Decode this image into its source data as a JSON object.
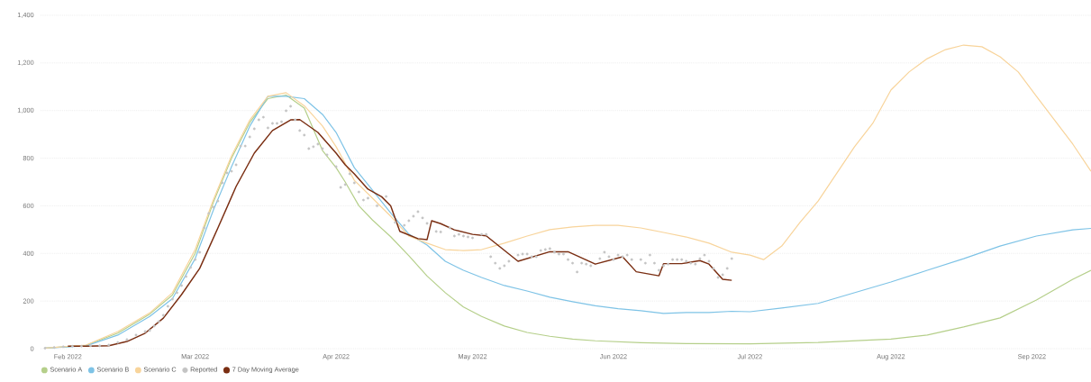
{
  "chart_data": {
    "type": "line",
    "grid": "y",
    "legend": "bottom left",
    "xlim": [
      "2022-01-26",
      "2022-09-14"
    ],
    "ylim": [
      0,
      1400
    ],
    "xticks": [
      {
        "value": "2022-02-01",
        "label": "Feb 2022"
      },
      {
        "value": "2022-03-01",
        "label": "Mar 2022"
      },
      {
        "value": "2022-04-01",
        "label": "Apr 2022"
      },
      {
        "value": "2022-05-01",
        "label": "May 2022"
      },
      {
        "value": "2022-06-01",
        "label": "Jun 2022"
      },
      {
        "value": "2022-07-01",
        "label": "Jul 2022"
      },
      {
        "value": "2022-08-01",
        "label": "Aug 2022"
      },
      {
        "value": "2022-09-01",
        "label": "Sep 2022"
      }
    ],
    "yticks": [
      0,
      200,
      400,
      600,
      800,
      {
        "value": 1000,
        "label": "1,000"
      },
      {
        "value": 1200,
        "label": "1,200"
      },
      {
        "value": 1400,
        "label": "1,400"
      }
    ],
    "series": [
      {
        "name": "Scenario A",
        "color": "#b5cf8a",
        "marker": "none",
        "x": [
          "2022-01-27",
          "2022-02-05",
          "2022-02-12",
          "2022-02-19",
          "2022-02-24",
          "2022-03-01",
          "2022-03-05",
          "2022-03-09",
          "2022-03-13",
          "2022-03-17",
          "2022-03-21",
          "2022-03-25",
          "2022-03-29",
          "2022-04-01",
          "2022-04-03",
          "2022-04-06",
          "2022-04-09",
          "2022-04-13",
          "2022-04-17",
          "2022-04-21",
          "2022-04-25",
          "2022-04-29",
          "2022-05-03",
          "2022-05-08",
          "2022-05-13",
          "2022-05-18",
          "2022-05-23",
          "2022-05-28",
          "2022-06-07",
          "2022-06-17",
          "2022-07-01",
          "2022-07-16",
          "2022-08-01",
          "2022-08-09",
          "2022-08-17",
          "2022-08-25",
          "2022-09-02",
          "2022-09-10",
          "2022-09-14"
        ],
        "values": [
          2,
          14,
          65,
          145,
          225,
          400,
          615,
          800,
          950,
          1050,
          1065,
          1010,
          832,
          760,
          700,
          600,
          540,
          470,
          390,
          305,
          235,
          175,
          135,
          95,
          68,
          52,
          40,
          33,
          25,
          21,
          20,
          26,
          40,
          57,
          91,
          129,
          204,
          291,
          329
        ]
      },
      {
        "name": "Scenario B",
        "color": "#7ec3e6",
        "marker": "none",
        "x": [
          "2022-01-27",
          "2022-02-05",
          "2022-02-12",
          "2022-02-19",
          "2022-02-24",
          "2022-03-01",
          "2022-03-05",
          "2022-03-09",
          "2022-03-13",
          "2022-03-17",
          "2022-03-21",
          "2022-03-25",
          "2022-03-29",
          "2022-04-01",
          "2022-04-05",
          "2022-04-09",
          "2022-04-13",
          "2022-04-17",
          "2022-04-21",
          "2022-04-25",
          "2022-04-29",
          "2022-05-03",
          "2022-05-08",
          "2022-05-13",
          "2022-05-18",
          "2022-05-23",
          "2022-05-28",
          "2022-06-02",
          "2022-06-07",
          "2022-06-12",
          "2022-06-17",
          "2022-06-22",
          "2022-06-27",
          "2022-07-01",
          "2022-07-08",
          "2022-07-16",
          "2022-07-24",
          "2022-08-01",
          "2022-08-09",
          "2022-08-17",
          "2022-08-25",
          "2022-09-02",
          "2022-09-10",
          "2022-09-14"
        ],
        "values": [
          2,
          12,
          57,
          135,
          210,
          378,
          582,
          764,
          934,
          1060,
          1060,
          1050,
          984,
          908,
          760,
          665,
          570,
          481,
          435,
          367,
          329,
          299,
          265,
          242,
          216,
          197,
          180,
          168,
          159,
          148,
          152,
          152,
          157,
          155,
          171,
          190,
          235,
          280,
          329,
          378,
          431,
          473,
          499,
          505
        ]
      },
      {
        "name": "Scenario C",
        "color": "#f8d49b",
        "marker": "none",
        "x": [
          "2022-01-27",
          "2022-02-05",
          "2022-02-12",
          "2022-02-19",
          "2022-02-24",
          "2022-03-01",
          "2022-03-05",
          "2022-03-09",
          "2022-03-13",
          "2022-03-17",
          "2022-03-21",
          "2022-03-25",
          "2022-03-29",
          "2022-04-01",
          "2022-04-05",
          "2022-04-09",
          "2022-04-13",
          "2022-04-17",
          "2022-04-21",
          "2022-04-25",
          "2022-04-29",
          "2022-05-03",
          "2022-05-08",
          "2022-05-13",
          "2022-05-18",
          "2022-05-23",
          "2022-05-28",
          "2022-06-02",
          "2022-06-07",
          "2022-06-12",
          "2022-06-17",
          "2022-06-22",
          "2022-06-27",
          "2022-07-01",
          "2022-07-04",
          "2022-07-08",
          "2022-07-12",
          "2022-07-16",
          "2022-07-20",
          "2022-07-24",
          "2022-07-28",
          "2022-08-01",
          "2022-08-05",
          "2022-08-09",
          "2022-08-13",
          "2022-08-17",
          "2022-08-21",
          "2022-08-25",
          "2022-08-29",
          "2022-09-02",
          "2022-09-06",
          "2022-09-10",
          "2022-09-14"
        ],
        "values": [
          2,
          15,
          72,
          150,
          235,
          416,
          625,
          810,
          960,
          1060,
          1075,
          1020,
          935,
          848,
          707,
          632,
          556,
          473,
          443,
          416,
          412,
          416,
          443,
          473,
          500,
          511,
          518,
          518,
          507,
          488,
          469,
          443,
          405,
          393,
          374,
          431,
          530,
          620,
          734,
          848,
          946,
          1086,
          1162,
          1218,
          1256,
          1275,
          1268,
          1226,
          1162,
          1060,
          960,
          859,
          745
        ]
      },
      {
        "name": "Reported",
        "type": "scatter",
        "color": "#c4c4c4",
        "marker": "circle",
        "x": [
          "2022-01-27",
          "2022-01-29",
          "2022-01-31",
          "2022-02-02",
          "2022-02-04",
          "2022-02-06",
          "2022-02-08",
          "2022-02-10",
          "2022-02-12",
          "2022-02-14",
          "2022-02-16",
          "2022-02-18",
          "2022-02-19",
          "2022-02-20",
          "2022-02-21",
          "2022-02-22",
          "2022-02-23",
          "2022-02-24",
          "2022-02-25",
          "2022-02-26",
          "2022-02-27",
          "2022-02-28",
          "2022-03-01",
          "2022-03-02",
          "2022-03-03",
          "2022-03-04",
          "2022-03-05",
          "2022-03-06",
          "2022-03-07",
          "2022-03-08",
          "2022-03-09",
          "2022-03-10",
          "2022-03-11",
          "2022-03-12",
          "2022-03-13",
          "2022-03-14",
          "2022-03-15",
          "2022-03-16",
          "2022-03-17",
          "2022-03-18",
          "2022-03-19",
          "2022-03-20",
          "2022-03-21",
          "2022-03-22",
          "2022-03-23",
          "2022-03-24",
          "2022-03-25",
          "2022-03-26",
          "2022-03-27",
          "2022-03-28",
          "2022-03-29",
          "2022-03-30",
          "2022-04-01",
          "2022-04-02",
          "2022-04-03",
          "2022-04-04",
          "2022-04-05",
          "2022-04-06",
          "2022-04-07",
          "2022-04-08",
          "2022-04-10",
          "2022-04-12",
          "2022-04-14",
          "2022-04-16",
          "2022-04-17",
          "2022-04-18",
          "2022-04-19",
          "2022-04-20",
          "2022-04-21",
          "2022-04-23",
          "2022-04-24",
          "2022-04-26",
          "2022-04-27",
          "2022-04-28",
          "2022-04-29",
          "2022-04-30",
          "2022-05-01",
          "2022-05-03",
          "2022-05-04",
          "2022-05-05",
          "2022-05-06",
          "2022-05-07",
          "2022-05-08",
          "2022-05-09",
          "2022-05-11",
          "2022-05-12",
          "2022-05-13",
          "2022-05-14",
          "2022-05-15",
          "2022-05-16",
          "2022-05-17",
          "2022-05-18",
          "2022-05-19",
          "2022-05-20",
          "2022-05-21",
          "2022-05-22",
          "2022-05-23",
          "2022-05-24",
          "2022-05-25",
          "2022-05-26",
          "2022-05-27",
          "2022-05-29",
          "2022-05-30",
          "2022-05-31",
          "2022-06-01",
          "2022-06-02",
          "2022-06-03",
          "2022-06-04",
          "2022-06-05",
          "2022-06-07",
          "2022-06-08",
          "2022-06-09",
          "2022-06-10",
          "2022-06-11",
          "2022-06-12",
          "2022-06-13",
          "2022-06-14",
          "2022-06-15",
          "2022-06-16",
          "2022-06-17",
          "2022-06-18",
          "2022-06-19",
          "2022-06-20",
          "2022-06-21",
          "2022-06-22",
          "2022-06-23",
          "2022-06-24",
          "2022-06-25",
          "2022-06-26",
          "2022-06-27"
        ],
        "values": [
          2,
          5,
          8,
          10,
          10,
          12,
          12,
          15,
          26,
          38,
          57,
          72,
          76,
          95,
          114,
          140,
          178,
          208,
          235,
          265,
          303,
          341,
          374,
          405,
          507,
          568,
          594,
          620,
          696,
          738,
          745,
          772,
          851,
          851,
          889,
          923,
          961,
          972,
          927,
          946,
          946,
          953,
          999,
          1018,
          961,
          916,
          897,
          840,
          848,
          859,
          840,
          814,
          764,
          677,
          689,
          734,
          696,
          658,
          624,
          632,
          600,
          639,
          530,
          518,
          537,
          556,
          575,
          549,
          526,
          492,
          490,
          507,
          473,
          480,
          473,
          469,
          465,
          480,
          480,
          386,
          359,
          337,
          348,
          367,
          393,
          397,
          397,
          386,
          386,
          412,
          416,
          420,
          405,
          397,
          397,
          374,
          359,
          322,
          359,
          355,
          348,
          378,
          405,
          386,
          374,
          393,
          386,
          393,
          374,
          374,
          359,
          393,
          359,
          329,
          348,
          355,
          374,
          374,
          374,
          367,
          359,
          355,
          378,
          393,
          367,
          337,
          299,
          310,
          337,
          378
        ]
      },
      {
        "name": "7 Day Moving Average",
        "color": "#7a2e12",
        "marker": "none",
        "x": [
          "2022-02-01",
          "2022-02-05",
          "2022-02-10",
          "2022-02-14",
          "2022-02-18",
          "2022-02-22",
          "2022-02-26",
          "2022-03-02",
          "2022-03-06",
          "2022-03-10",
          "2022-03-14",
          "2022-03-18",
          "2022-03-22",
          "2022-03-24",
          "2022-03-28",
          "2022-04-01",
          "2022-04-03",
          "2022-04-05",
          "2022-04-08",
          "2022-04-11",
          "2022-04-13",
          "2022-04-15",
          "2022-04-19",
          "2022-04-21",
          "2022-04-22",
          "2022-04-24",
          "2022-04-27",
          "2022-05-01",
          "2022-05-04",
          "2022-05-11",
          "2022-05-18",
          "2022-05-22",
          "2022-05-28",
          "2022-06-03",
          "2022-06-06",
          "2022-06-11",
          "2022-06-12",
          "2022-06-16",
          "2022-06-20",
          "2022-06-22",
          "2022-06-25",
          "2022-06-27"
        ],
        "values": [
          10,
          10,
          12,
          30,
          65,
          128,
          227,
          337,
          507,
          681,
          821,
          916,
          961,
          962,
          908,
          821,
          772,
          734,
          670,
          638,
          600,
          493,
          462,
          458,
          537,
          525,
          499,
          480,
          474,
          367,
          407,
          407,
          355,
          386,
          323,
          306,
          357,
          357,
          370,
          355,
          291,
          287
        ]
      }
    ]
  }
}
